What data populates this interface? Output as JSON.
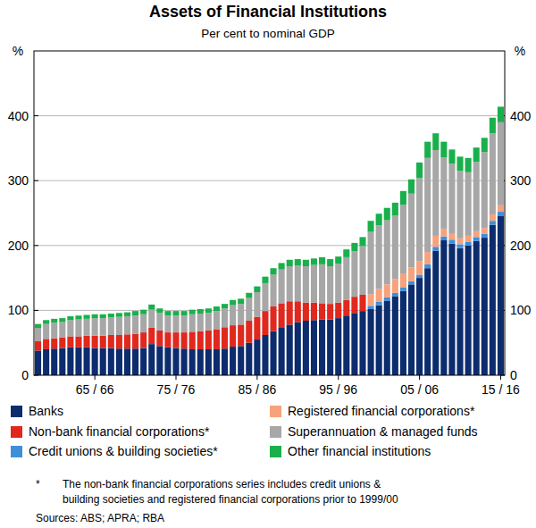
{
  "chart_data": {
    "type": "bar",
    "stacked": true,
    "grid": true,
    "title": "Assets of Financial Institutions",
    "subtitle": "Per cent to nominal GDP",
    "y_label": "%",
    "ylim": [
      0,
      500
    ],
    "yticks": [
      0,
      100,
      200,
      300,
      400
    ],
    "categories": [
      null,
      null,
      null,
      null,
      null,
      null,
      null,
      "65 / 66",
      null,
      null,
      null,
      null,
      null,
      null,
      null,
      null,
      null,
      "75 / 76",
      null,
      null,
      null,
      null,
      null,
      null,
      null,
      null,
      null,
      "85 / 86",
      null,
      null,
      null,
      null,
      null,
      null,
      null,
      null,
      null,
      "95 / 96",
      null,
      null,
      null,
      null,
      null,
      null,
      null,
      null,
      null,
      "05 / 06",
      null,
      null,
      null,
      null,
      null,
      null,
      null,
      null,
      null,
      "15 / 16"
    ],
    "series": [
      {
        "name": "Banks",
        "color": "#0c2c6e",
        "values": [
          38,
          40,
          41,
          42,
          43,
          43,
          43,
          42,
          42,
          42,
          41,
          41,
          41,
          42,
          48,
          45,
          43,
          42,
          41,
          40,
          40,
          40,
          40,
          41,
          44,
          45,
          50,
          55,
          62,
          68,
          73,
          78,
          82,
          84,
          85,
          86,
          86,
          88,
          92,
          96,
          99,
          102,
          108,
          115,
          122,
          130,
          140,
          150,
          165,
          192,
          208,
          203,
          196,
          200,
          207,
          212,
          232,
          246
        ]
      },
      {
        "name": "Non-bank financial corporations*",
        "color": "#e0281e",
        "values": [
          15,
          16,
          16,
          16,
          17,
          17,
          18,
          19,
          19,
          20,
          21,
          22,
          23,
          24,
          25,
          24,
          23,
          24,
          25,
          27,
          28,
          29,
          31,
          33,
          33,
          33,
          34,
          35,
          37,
          38,
          38,
          36,
          32,
          28,
          27,
          25,
          24,
          24,
          24,
          25,
          25,
          null,
          null,
          null,
          null,
          null,
          null,
          null,
          null,
          null,
          null,
          null,
          null,
          null,
          null,
          null,
          null,
          null
        ]
      },
      {
        "name": "Credit unions & building societies*",
        "color": "#3d8fdc",
        "values": [
          null,
          null,
          null,
          null,
          null,
          null,
          null,
          null,
          null,
          null,
          null,
          null,
          null,
          null,
          null,
          null,
          null,
          null,
          null,
          null,
          null,
          null,
          null,
          null,
          null,
          null,
          null,
          null,
          null,
          null,
          null,
          null,
          null,
          null,
          null,
          null,
          null,
          null,
          null,
          null,
          null,
          5,
          5,
          5,
          5,
          5,
          5,
          5,
          6,
          6,
          6,
          6,
          6,
          6,
          6,
          6,
          6,
          6
        ]
      },
      {
        "name": "Registered financial corporations*",
        "color": "#f7a27c",
        "values": [
          null,
          null,
          null,
          null,
          null,
          null,
          null,
          null,
          null,
          null,
          null,
          null,
          null,
          null,
          null,
          null,
          null,
          null,
          null,
          null,
          null,
          null,
          null,
          null,
          null,
          null,
          null,
          null,
          null,
          null,
          null,
          null,
          null,
          null,
          null,
          null,
          null,
          null,
          null,
          null,
          null,
          18,
          20,
          20,
          21,
          21,
          21,
          21,
          19,
          17,
          12,
          10,
          9,
          9,
          9,
          9,
          10,
          10
        ]
      },
      {
        "name": "Superannuation & managed funds",
        "color": "#a7a7a7",
        "values": [
          20,
          23,
          24,
          24,
          25,
          26,
          26,
          27,
          27,
          27,
          28,
          28,
          28,
          28,
          28,
          27,
          26,
          26,
          26,
          27,
          27,
          27,
          28,
          29,
          31,
          32,
          35,
          38,
          43,
          49,
          52,
          54,
          55,
          56,
          58,
          60,
          58,
          60,
          66,
          70,
          75,
          96,
          98,
          99,
          98,
          107,
          114,
          128,
          145,
          132,
          110,
          107,
          104,
          98,
          107,
          117,
          125,
          128
        ]
      },
      {
        "name": "Other financial institutions",
        "color": "#19b04b",
        "values": [
          6,
          6,
          6,
          6,
          6,
          6,
          6,
          6,
          6,
          6,
          6,
          6,
          7,
          7,
          8,
          7,
          7,
          7,
          7,
          7,
          7,
          7,
          7,
          7,
          8,
          8,
          8,
          9,
          10,
          10,
          10,
          10,
          10,
          10,
          10,
          11,
          11,
          11,
          12,
          13,
          14,
          17,
          18,
          19,
          20,
          21,
          22,
          24,
          25,
          26,
          24,
          22,
          22,
          22,
          22,
          22,
          24,
          24
        ]
      }
    ],
    "footnote_marker": "*",
    "footnote_lines": [
      "The non-bank financial corporations series includes credit unions &",
      "building societies and registered financial corporations prior to 1999/00"
    ],
    "sources": "Sources: ABS; APRA; RBA"
  }
}
